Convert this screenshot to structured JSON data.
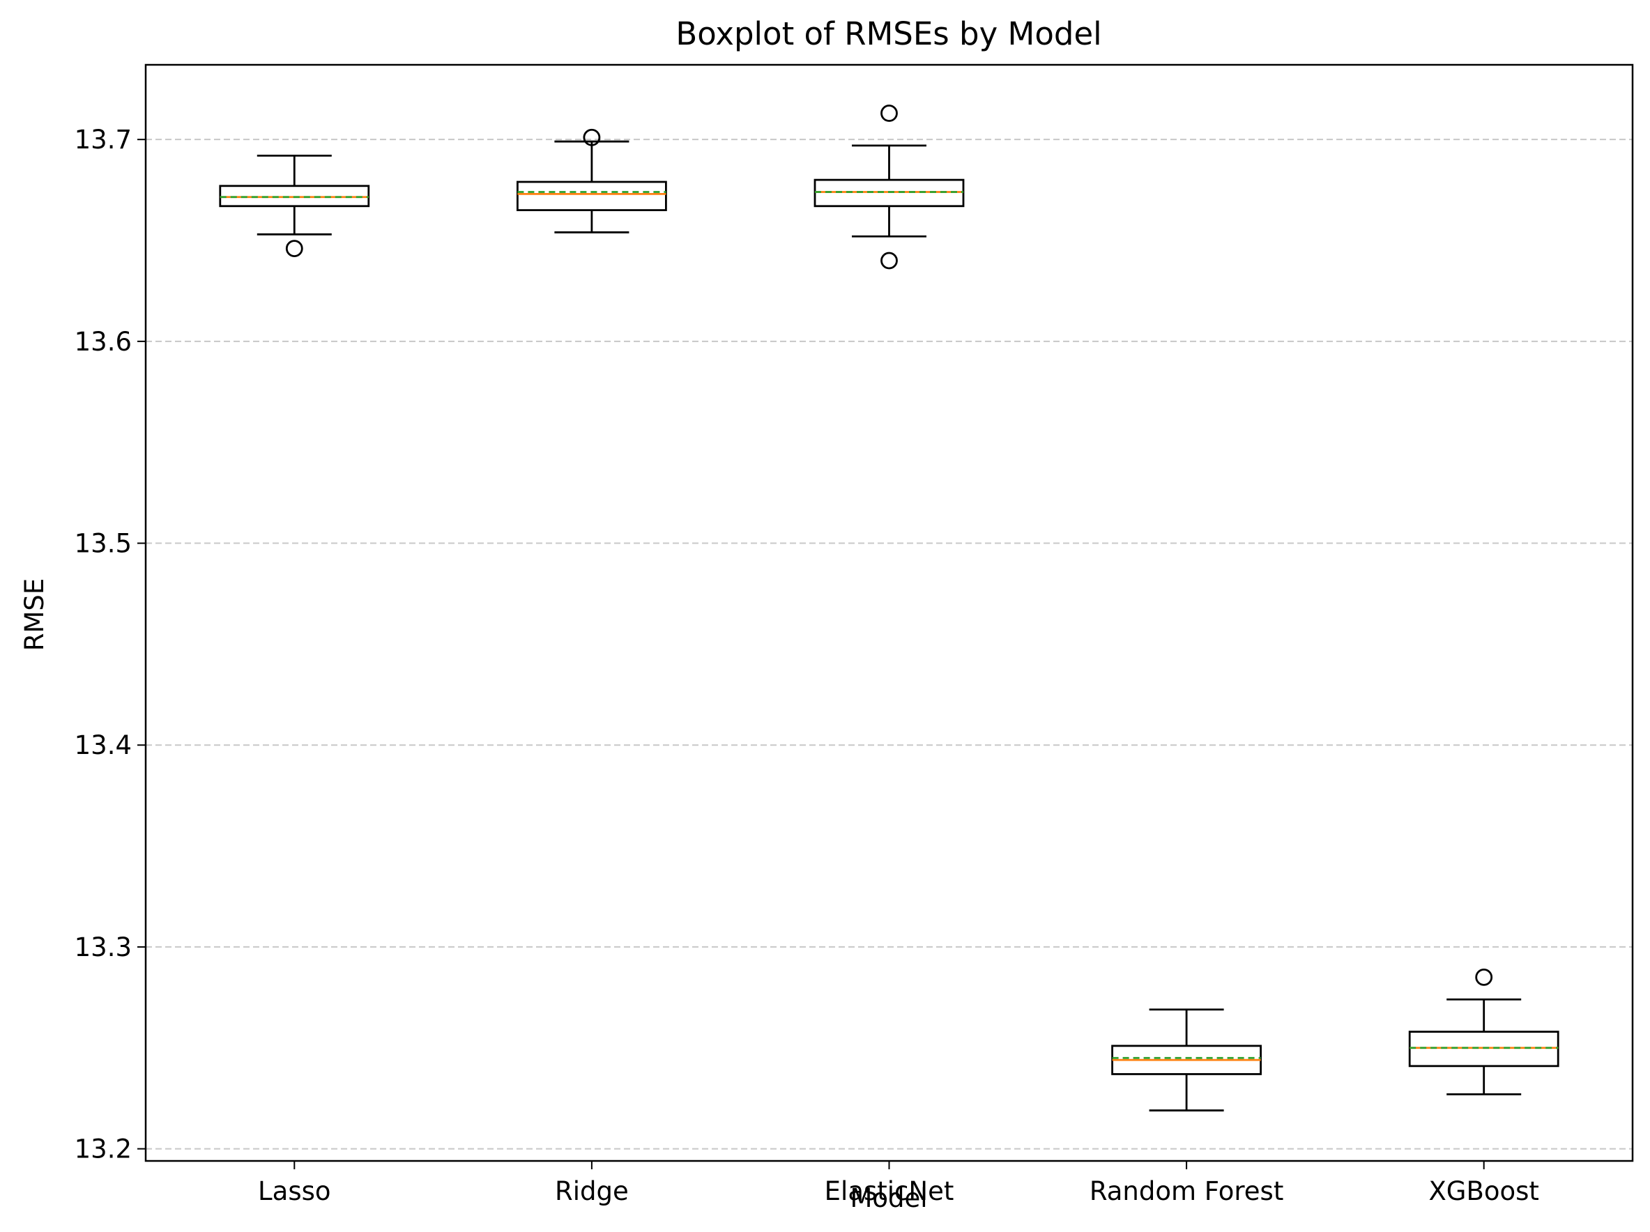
{
  "chart_data": {
    "type": "boxplot",
    "title": "Boxplot of RMSEs by Model",
    "xlabel": "Model",
    "ylabel": "RMSE",
    "ylim": [
      13.194,
      13.737
    ],
    "yticks": [
      "13.2",
      "13.3",
      "13.4",
      "13.5",
      "13.6",
      "13.7"
    ],
    "ytick_values": [
      13.2,
      13.3,
      13.4,
      13.5,
      13.6,
      13.7
    ],
    "grid": "y-dashed",
    "categories": [
      "Lasso",
      "Ridge",
      "ElasticNet",
      "Random Forest",
      "XGBoost"
    ],
    "boxes": [
      {
        "category": "Lasso",
        "whisker_low": 13.653,
        "q1": 13.667,
        "median": 13.6715,
        "mean": 13.6715,
        "q3": 13.677,
        "whisker_high": 13.692,
        "outliers": [
          13.646
        ]
      },
      {
        "category": "Ridge",
        "whisker_low": 13.654,
        "q1": 13.665,
        "median": 13.673,
        "mean": 13.674,
        "q3": 13.679,
        "whisker_high": 13.699,
        "outliers": [
          13.701
        ]
      },
      {
        "category": "ElasticNet",
        "whisker_low": 13.652,
        "q1": 13.667,
        "median": 13.674,
        "mean": 13.674,
        "q3": 13.68,
        "whisker_high": 13.697,
        "outliers": [
          13.713,
          13.64
        ]
      },
      {
        "category": "Random Forest",
        "whisker_low": 13.219,
        "q1": 13.237,
        "median": 13.244,
        "mean": 13.245,
        "q3": 13.251,
        "whisker_high": 13.269,
        "outliers": []
      },
      {
        "category": "XGBoost",
        "whisker_low": 13.227,
        "q1": 13.241,
        "median": 13.25,
        "mean": 13.25,
        "q3": 13.258,
        "whisker_high": 13.274,
        "outliers": [
          13.285
        ]
      }
    ],
    "colors": {
      "box": "#000000",
      "median": "#ff7f0e",
      "mean": "#2ca02c",
      "grid": "#c8c8c8"
    }
  }
}
